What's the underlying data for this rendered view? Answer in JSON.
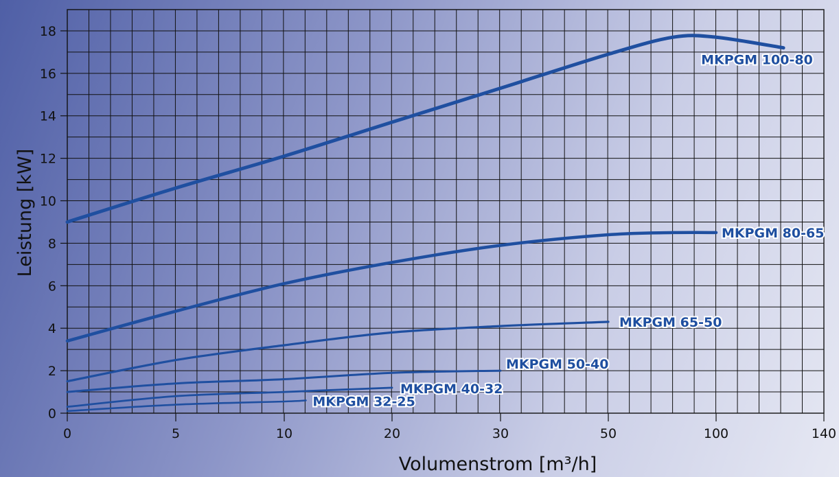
{
  "chart_data": {
    "type": "line",
    "title": "",
    "xlabel": "Volumenstrom [m³/h]",
    "ylabel": "Leistung [kW]",
    "x_ticks": [
      "0",
      "5",
      "10",
      "20",
      "30",
      "50",
      "100",
      "140"
    ],
    "y_ticks": [
      "0",
      "2",
      "4",
      "6",
      "8",
      "10",
      "12",
      "14",
      "16",
      "18"
    ],
    "ylim": [
      0,
      19
    ],
    "grid": true,
    "line_color": "#1f4fa0",
    "series": [
      {
        "name": "MKPGM 100-80",
        "x": [
          0,
          5,
          10,
          20,
          30,
          50,
          80,
          100,
          125
        ],
        "y": [
          9.0,
          10.6,
          12.1,
          13.7,
          15.3,
          16.9,
          17.7,
          17.7,
          17.2
        ]
      },
      {
        "name": "MKPGM 80-65",
        "x": [
          0,
          5,
          10,
          20,
          30,
          50,
          80,
          100
        ],
        "y": [
          3.4,
          4.8,
          6.1,
          7.1,
          7.9,
          8.4,
          8.5,
          8.5
        ]
      },
      {
        "name": "MKPGM 65-50",
        "x": [
          0,
          5,
          10,
          20,
          30,
          50
        ],
        "y": [
          1.5,
          2.5,
          3.2,
          3.8,
          4.1,
          4.3
        ]
      },
      {
        "name": "MKPGM 50-40",
        "x": [
          0,
          5,
          10,
          20,
          30
        ],
        "y": [
          1.0,
          1.4,
          1.6,
          1.9,
          2.0
        ]
      },
      {
        "name": "MKPGM 40-32",
        "x": [
          0,
          5,
          10,
          20
        ],
        "y": [
          0.3,
          0.8,
          1.0,
          1.2
        ]
      },
      {
        "name": "MKPGM 32-25",
        "x": [
          0,
          5,
          10,
          12
        ],
        "y": [
          0.1,
          0.4,
          0.55,
          0.6
        ]
      }
    ]
  }
}
